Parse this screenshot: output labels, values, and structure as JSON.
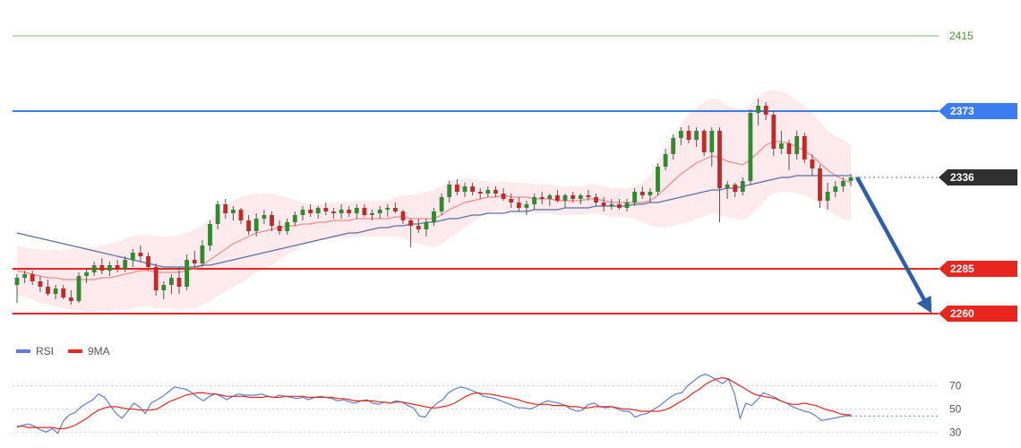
{
  "chart_data": {
    "type": "candlestick",
    "price_axis": {
      "ylim": [
        2245,
        2425
      ]
    },
    "levels": [
      {
        "name": "resistance-2415",
        "value": 2415,
        "label": "2415",
        "color": "#7fc05a",
        "tag": false
      },
      {
        "name": "resistance-2373",
        "value": 2373,
        "label": "2373",
        "color": "#3b7cf0",
        "tag": true
      },
      {
        "name": "current-price",
        "value": 2336,
        "label": "2336",
        "color": "#333333",
        "tag": true,
        "dotted": true
      },
      {
        "name": "support-2285",
        "value": 2285,
        "label": "2285",
        "color": "#e8261e",
        "tag": true
      },
      {
        "name": "support-2260",
        "value": 2260,
        "label": "2260",
        "color": "#e8261e",
        "tag": true
      }
    ],
    "candles": [
      [
        2276,
        2282,
        2266,
        2280
      ],
      [
        2280,
        2284,
        2277,
        2282
      ],
      [
        2282,
        2284,
        2276,
        2278
      ],
      [
        2278,
        2281,
        2272,
        2275
      ],
      [
        2275,
        2279,
        2270,
        2271
      ],
      [
        2271,
        2276,
        2268,
        2274
      ],
      [
        2274,
        2276,
        2268,
        2269
      ],
      [
        2269,
        2273,
        2265,
        2267
      ],
      [
        2267,
        2283,
        2266,
        2281
      ],
      [
        2281,
        2285,
        2277,
        2283
      ],
      [
        2283,
        2289,
        2281,
        2287
      ],
      [
        2287,
        2291,
        2282,
        2284
      ],
      [
        2284,
        2289,
        2281,
        2287
      ],
      [
        2287,
        2290,
        2283,
        2285
      ],
      [
        2285,
        2292,
        2283,
        2290
      ],
      [
        2290,
        2296,
        2286,
        2294
      ],
      [
        2294,
        2298,
        2289,
        2292
      ],
      [
        2292,
        2294,
        2284,
        2286
      ],
      [
        2286,
        2288,
        2270,
        2273
      ],
      [
        2273,
        2278,
        2268,
        2276
      ],
      [
        2276,
        2282,
        2271,
        2280
      ],
      [
        2280,
        2286,
        2271,
        2275
      ],
      [
        2275,
        2293,
        2273,
        2290
      ],
      [
        2290,
        2295,
        2285,
        2288
      ],
      [
        2288,
        2301,
        2286,
        2298
      ],
      [
        2298,
        2312,
        2295,
        2310
      ],
      [
        2310,
        2323,
        2307,
        2321
      ],
      [
        2321,
        2324,
        2313,
        2316
      ],
      [
        2316,
        2320,
        2312,
        2318
      ],
      [
        2318,
        2319,
        2310,
        2312
      ],
      [
        2312,
        2315,
        2304,
        2306
      ],
      [
        2306,
        2316,
        2303,
        2313
      ],
      [
        2313,
        2318,
        2310,
        2315
      ],
      [
        2315,
        2317,
        2306,
        2309
      ],
      [
        2309,
        2312,
        2304,
        2306
      ],
      [
        2306,
        2313,
        2304,
        2311
      ],
      [
        2311,
        2317,
        2309,
        2315
      ],
      [
        2315,
        2320,
        2312,
        2318
      ],
      [
        2318,
        2321,
        2314,
        2316
      ],
      [
        2316,
        2320,
        2313,
        2319
      ],
      [
        2319,
        2322,
        2315,
        2317
      ],
      [
        2317,
        2319,
        2313,
        2316
      ],
      [
        2316,
        2321,
        2313,
        2318
      ],
      [
        2318,
        2320,
        2314,
        2316
      ],
      [
        2316,
        2321,
        2313,
        2319
      ],
      [
        2319,
        2321,
        2314,
        2315
      ],
      [
        2315,
        2318,
        2312,
        2316
      ],
      [
        2316,
        2320,
        2313,
        2318
      ],
      [
        2318,
        2321,
        2314,
        2319
      ],
      [
        2319,
        2322,
        2316,
        2317
      ],
      [
        2317,
        2318,
        2310,
        2312
      ],
      [
        2312,
        2313,
        2297,
        2309
      ],
      [
        2309,
        2313,
        2305,
        2307
      ],
      [
        2307,
        2313,
        2303,
        2311
      ],
      [
        2311,
        2319,
        2309,
        2317
      ],
      [
        2317,
        2327,
        2315,
        2325
      ],
      [
        2325,
        2334,
        2322,
        2332
      ],
      [
        2332,
        2335,
        2326,
        2328
      ],
      [
        2328,
        2333,
        2325,
        2331
      ],
      [
        2331,
        2333,
        2326,
        2328
      ],
      [
        2328,
        2330,
        2324,
        2327
      ],
      [
        2327,
        2331,
        2325,
        2329
      ],
      [
        2329,
        2331,
        2325,
        2327
      ],
      [
        2327,
        2330,
        2323,
        2324
      ],
      [
        2324,
        2327,
        2319,
        2322
      ],
      [
        2322,
        2325,
        2317,
        2319
      ],
      [
        2319,
        2323,
        2315,
        2321
      ],
      [
        2321,
        2327,
        2318,
        2325
      ],
      [
        2325,
        2328,
        2321,
        2324
      ],
      [
        2324,
        2327,
        2320,
        2326
      ],
      [
        2326,
        2329,
        2322,
        2323
      ],
      [
        2323,
        2327,
        2319,
        2326
      ],
      [
        2326,
        2328,
        2322,
        2324
      ],
      [
        2324,
        2327,
        2321,
        2326
      ],
      [
        2326,
        2329,
        2323,
        2325
      ],
      [
        2325,
        2327,
        2320,
        2322
      ],
      [
        2322,
        2325,
        2317,
        2320
      ],
      [
        2320,
        2324,
        2318,
        2321
      ],
      [
        2321,
        2324,
        2318,
        2319
      ],
      [
        2319,
        2324,
        2317,
        2322
      ],
      [
        2322,
        2330,
        2320,
        2328
      ],
      [
        2328,
        2331,
        2324,
        2326
      ],
      [
        2326,
        2330,
        2322,
        2328
      ],
      [
        2328,
        2344,
        2326,
        2342
      ],
      [
        2342,
        2352,
        2340,
        2349
      ],
      [
        2349,
        2360,
        2346,
        2358
      ],
      [
        2358,
        2364,
        2354,
        2362
      ],
      [
        2362,
        2365,
        2355,
        2357
      ],
      [
        2357,
        2364,
        2353,
        2362
      ],
      [
        2362,
        2363,
        2348,
        2350
      ],
      [
        2350,
        2364,
        2342,
        2362
      ],
      [
        2362,
        2364,
        2311,
        2330
      ],
      [
        2330,
        2334,
        2324,
        2332
      ],
      [
        2332,
        2333,
        2325,
        2328
      ],
      [
        2328,
        2336,
        2326,
        2334
      ],
      [
        2334,
        2374,
        2332,
        2372
      ],
      [
        2372,
        2380,
        2365,
        2376
      ],
      [
        2376,
        2378,
        2368,
        2371
      ],
      [
        2371,
        2373,
        2348,
        2352
      ],
      [
        2352,
        2362,
        2349,
        2355
      ],
      [
        2355,
        2357,
        2340,
        2349
      ],
      [
        2349,
        2362,
        2346,
        2359
      ],
      [
        2359,
        2361,
        2344,
        2346
      ],
      [
        2346,
        2349,
        2337,
        2341
      ],
      [
        2341,
        2343,
        2319,
        2323
      ],
      [
        2323,
        2333,
        2318,
        2328
      ],
      [
        2328,
        2334,
        2325,
        2331
      ],
      [
        2331,
        2336,
        2328,
        2334
      ],
      [
        2334,
        2338,
        2331,
        2336
      ]
    ],
    "ma_fast": [
      2284,
      2283,
      2282,
      2281,
      2280,
      2280,
      2279,
      2279,
      2279,
      2279,
      2279,
      2280,
      2280,
      2281,
      2282,
      2283,
      2284,
      2284,
      2283,
      2283,
      2283,
      2283,
      2284,
      2285,
      2287,
      2290,
      2293,
      2296,
      2299,
      2301,
      2303,
      2305,
      2306,
      2307,
      2308,
      2309,
      2309,
      2310,
      2310,
      2311,
      2311,
      2312,
      2312,
      2312,
      2313,
      2313,
      2313,
      2313,
      2313,
      2314,
      2314,
      2313,
      2313,
      2313,
      2313,
      2315,
      2318,
      2320,
      2322,
      2323,
      2324,
      2325,
      2325,
      2326,
      2325,
      2325,
      2325,
      2324,
      2324,
      2324,
      2323,
      2323,
      2323,
      2323,
      2324,
      2324,
      2323,
      2322,
      2322,
      2322,
      2322,
      2322,
      2323,
      2326,
      2330,
      2334,
      2338,
      2341,
      2344,
      2346,
      2348,
      2347,
      2345,
      2344,
      2343,
      2346,
      2350,
      2354,
      2356,
      2356,
      2355,
      2353,
      2351,
      2348,
      2344,
      2340,
      2337,
      2335,
      2333
    ],
    "ma_slow": [
      2305,
      2304,
      2303,
      2302,
      2301,
      2300,
      2299,
      2298,
      2297,
      2296,
      2295,
      2294,
      2293,
      2292,
      2291,
      2290,
      2289,
      2288,
      2287,
      2286,
      2286,
      2286,
      2286,
      2286,
      2287,
      2287,
      2288,
      2289,
      2290,
      2291,
      2292,
      2293,
      2294,
      2295,
      2296,
      2297,
      2298,
      2299,
      2300,
      2301,
      2302,
      2303,
      2304,
      2305,
      2305,
      2306,
      2307,
      2308,
      2308,
      2309,
      2309,
      2310,
      2310,
      2311,
      2311,
      2312,
      2313,
      2313,
      2314,
      2315,
      2315,
      2316,
      2316,
      2316,
      2317,
      2317,
      2317,
      2318,
      2318,
      2318,
      2318,
      2319,
      2319,
      2319,
      2319,
      2320,
      2320,
      2320,
      2320,
      2320,
      2321,
      2321,
      2322,
      2322,
      2323,
      2324,
      2325,
      2326,
      2327,
      2328,
      2329,
      2329,
      2330,
      2330,
      2331,
      2332,
      2333,
      2334,
      2335,
      2336,
      2336,
      2337,
      2337,
      2337,
      2337,
      2337,
      2337,
      2337,
      2337
    ],
    "bands": {
      "width": [
        14,
        14,
        14,
        15,
        15,
        16,
        16,
        17,
        17,
        18,
        18,
        18,
        19,
        19,
        20,
        20,
        20,
        20,
        20,
        20,
        20,
        21,
        21,
        22,
        22,
        23,
        23,
        24,
        24,
        24,
        23,
        22,
        21,
        20,
        18,
        16,
        14,
        12,
        11,
        10,
        10,
        10,
        10,
        10,
        10,
        10,
        10,
        10,
        10,
        11,
        12,
        13,
        14,
        15,
        16,
        16,
        16,
        15,
        14,
        12,
        10,
        9,
        8,
        8,
        8,
        8,
        8,
        8,
        8,
        8,
        8,
        8,
        8,
        8,
        8,
        8,
        8,
        8,
        8,
        8,
        9,
        11,
        14,
        18,
        22,
        25,
        28,
        30,
        31,
        32,
        32,
        32,
        31,
        31,
        31,
        31,
        31,
        30,
        29,
        28,
        27,
        26,
        25,
        24,
        23,
        22,
        22,
        22,
        21
      ]
    },
    "target_arrow": {
      "from": 2336,
      "to": 2260
    },
    "rsi": {
      "yticks": [
        70,
        50,
        30
      ],
      "ylim": [
        24,
        86
      ],
      "legend": [
        {
          "name": "RSI",
          "color": "#5b7fd6"
        },
        {
          "name": "9MA",
          "color": "#e8261e"
        }
      ],
      "values": [
        34,
        36,
        37,
        35,
        32,
        30,
        33,
        29,
        40,
        45,
        47,
        52,
        55,
        58,
        63,
        60,
        53,
        46,
        42,
        48,
        55,
        52,
        46,
        55,
        58,
        61,
        65,
        69,
        68,
        67,
        64,
        60,
        57,
        61,
        63,
        61,
        58,
        61,
        63,
        62,
        62,
        62,
        63,
        61,
        60,
        62,
        61,
        60,
        59,
        60,
        58,
        60,
        61,
        60,
        59,
        57,
        58,
        56,
        55,
        57,
        58,
        55,
        54,
        56,
        55,
        57,
        56,
        53,
        51,
        44,
        43,
        50,
        55,
        58,
        64,
        67,
        69,
        68,
        66,
        64,
        61,
        60,
        59,
        57,
        55,
        53,
        51,
        51,
        50,
        52,
        55,
        57,
        56,
        55,
        53,
        50,
        48,
        49,
        54,
        55,
        52,
        51,
        52,
        50,
        48,
        48,
        43,
        45,
        46,
        49,
        52,
        56,
        60,
        63,
        64,
        70,
        74,
        78,
        80,
        78,
        75,
        72,
        76,
        64,
        42,
        55,
        53,
        58,
        64,
        62,
        60,
        57,
        55,
        52,
        50,
        48,
        47,
        44,
        40,
        41,
        42,
        43,
        44,
        44
      ],
      "ma": [
        35,
        35,
        34,
        34,
        34,
        34,
        34,
        33,
        33,
        34,
        36,
        39,
        42,
        46,
        49,
        51,
        52,
        52,
        51,
        50,
        50,
        49,
        49,
        49,
        50,
        53,
        56,
        58,
        60,
        62,
        63,
        64,
        64,
        63,
        63,
        62,
        61,
        61,
        61,
        61,
        60,
        60,
        60,
        61,
        60,
        60,
        61,
        61,
        61,
        61,
        60,
        60,
        60,
        60,
        60,
        59,
        59,
        58,
        57,
        57,
        57,
        57,
        56,
        56,
        55,
        56,
        56,
        55,
        54,
        53,
        52,
        51,
        51,
        52,
        53,
        55,
        58,
        61,
        63,
        64,
        63,
        63,
        62,
        61,
        60,
        59,
        58,
        56,
        55,
        54,
        54,
        54,
        53,
        53,
        53,
        52,
        52,
        51,
        51,
        52,
        52,
        52,
        52,
        51,
        50,
        50,
        49,
        48,
        48,
        48,
        48,
        49,
        51,
        54,
        57,
        60,
        64,
        67,
        71,
        74,
        76,
        77,
        76,
        73,
        70,
        67,
        64,
        62,
        61,
        60,
        59,
        57,
        55,
        54,
        54,
        55,
        54,
        53,
        51,
        49,
        48,
        46,
        45,
        45
      ]
    }
  }
}
